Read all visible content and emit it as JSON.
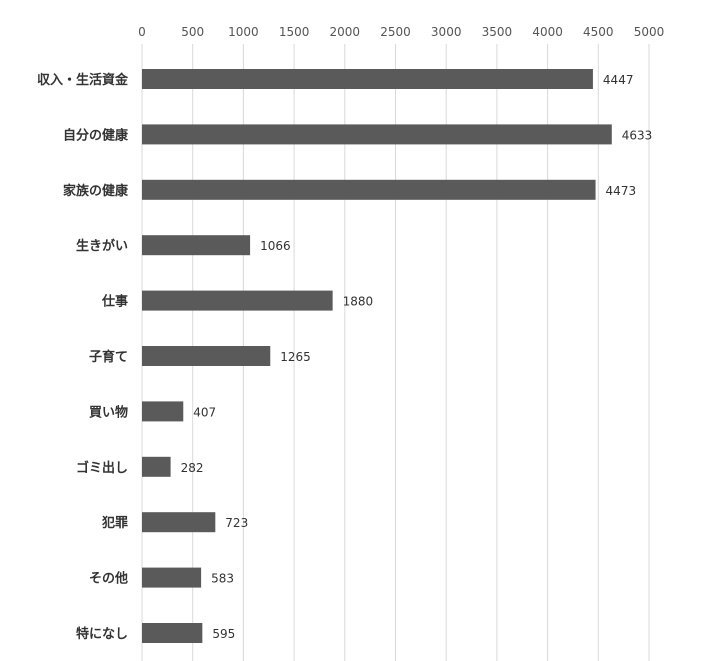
{
  "chart_data": {
    "type": "bar",
    "orientation": "horizontal",
    "categories": [
      "収入・生活資金",
      "自分の健康",
      "家族の健康",
      "生きがい",
      "仕事",
      "子育て",
      "買い物",
      "ゴミ出し",
      "犯罪",
      "その他",
      "特になし"
    ],
    "values": [
      4447,
      4633,
      4473,
      1066,
      1880,
      1265,
      407,
      282,
      723,
      583,
      595
    ],
    "x_ticks": [
      0,
      500,
      1000,
      1500,
      2000,
      2500,
      3000,
      3500,
      4000,
      4500,
      5000
    ],
    "xlim": [
      0,
      5000
    ],
    "axis_position": "top",
    "grid": true,
    "bar_color": "#5a5a5a",
    "data_labels": true
  }
}
